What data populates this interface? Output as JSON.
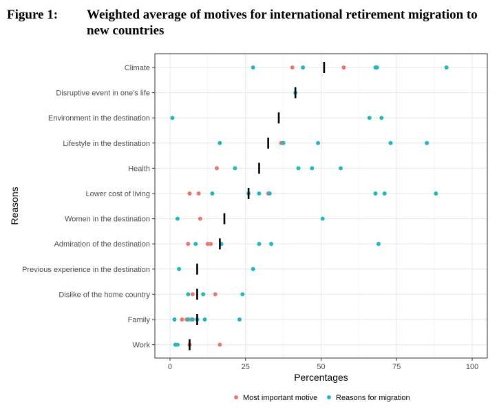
{
  "figure": {
    "label": "Figure 1:",
    "title": "Weighted average of motives for international retirement migration to new countries"
  },
  "chart_data": {
    "type": "scatter",
    "xlabel": "Percentages",
    "ylabel": "Reasons",
    "xlim": [
      -5,
      105
    ],
    "xticks": [
      0,
      25,
      50,
      75,
      100
    ],
    "grid": true,
    "legend_position": "bottom",
    "categories": [
      "Climate",
      "Disruptive event in one's life",
      "Environment in the destination",
      "Lifestyle in the destination",
      "Health",
      "Lower cost of living",
      "Women in the destination",
      "Admiration of the destination",
      "Previous experience in the destination",
      "Dislike of the home country",
      "Family",
      "Work"
    ],
    "series": [
      {
        "name": "Most important motive",
        "color": "#e8796e",
        "points": [
          {
            "category": "Climate",
            "values": [
              40.5,
              57.5
            ]
          },
          {
            "category": "Disruptive event in one's life",
            "values": []
          },
          {
            "category": "Environment in the destination",
            "values": []
          },
          {
            "category": "Lifestyle in the destination",
            "values": [
              36.8
            ]
          },
          {
            "category": "Health",
            "values": [
              15.5
            ]
          },
          {
            "category": "Lower cost of living",
            "values": [
              6.5,
              9.5,
              32.5
            ]
          },
          {
            "category": "Women in the destination",
            "values": [
              10.0
            ]
          },
          {
            "category": "Admiration of the destination",
            "values": [
              6.0,
              12.5,
              13.5
            ]
          },
          {
            "category": "Previous experience in the destination",
            "values": []
          },
          {
            "category": "Dislike of the home country",
            "values": [
              7.5,
              15.0
            ]
          },
          {
            "category": "Family",
            "values": [
              4.0,
              5.5,
              7.0
            ]
          },
          {
            "category": "Work",
            "values": [
              6.5,
              16.5
            ]
          }
        ]
      },
      {
        "name": "Reasons for migration",
        "color": "#22b8be",
        "points": [
          {
            "category": "Climate",
            "values": [
              27.5,
              44.0,
              68.0,
              68.5,
              91.5
            ]
          },
          {
            "category": "Disruptive event in one's life",
            "values": [
              41.5
            ]
          },
          {
            "category": "Environment in the destination",
            "values": [
              0.8,
              66.0,
              70.0
            ]
          },
          {
            "category": "Lifestyle in the destination",
            "values": [
              16.5,
              37.5,
              49.0,
              73.0,
              85.0
            ]
          },
          {
            "category": "Health",
            "values": [
              21.5,
              42.5,
              47.0,
              56.5
            ]
          },
          {
            "category": "Lower cost of living",
            "values": [
              14.0,
              26.0,
              29.5,
              33.0,
              68.0,
              71.0,
              88.0
            ]
          },
          {
            "category": "Women in the destination",
            "values": [
              2.5,
              50.5
            ]
          },
          {
            "category": "Admiration of the destination",
            "values": [
              8.5,
              17.0,
              29.5,
              33.5,
              69.0
            ]
          },
          {
            "category": "Previous experience in the destination",
            "values": [
              3.0,
              27.5
            ]
          },
          {
            "category": "Dislike of the home country",
            "values": [
              6.0,
              11.0,
              24.0
            ]
          },
          {
            "category": "Family",
            "values": [
              1.5,
              6.0,
              7.5,
              9.0,
              11.5,
              23.0
            ]
          },
          {
            "category": "Work",
            "values": [
              1.8,
              2.5
            ]
          }
        ]
      }
    ],
    "weighted_average": [
      {
        "category": "Climate",
        "value": 51.0
      },
      {
        "category": "Disruptive event in one's life",
        "value": 41.5
      },
      {
        "category": "Environment in the destination",
        "value": 36.0
      },
      {
        "category": "Lifestyle in the destination",
        "value": 32.5
      },
      {
        "category": "Health",
        "value": 29.5
      },
      {
        "category": "Lower cost of living",
        "value": 26.0
      },
      {
        "category": "Women in the destination",
        "value": 18.0
      },
      {
        "category": "Admiration of the destination",
        "value": 16.5
      },
      {
        "category": "Previous experience in the destination",
        "value": 9.0
      },
      {
        "category": "Dislike of the home country",
        "value": 9.0
      },
      {
        "category": "Family",
        "value": 9.0
      },
      {
        "category": "Work",
        "value": 6.5
      }
    ],
    "colors": {
      "panel_border": "#333333",
      "grid_major": "#e6e6e6",
      "grid_minor": "#f2f2f2",
      "average_bar": "#000000"
    }
  }
}
